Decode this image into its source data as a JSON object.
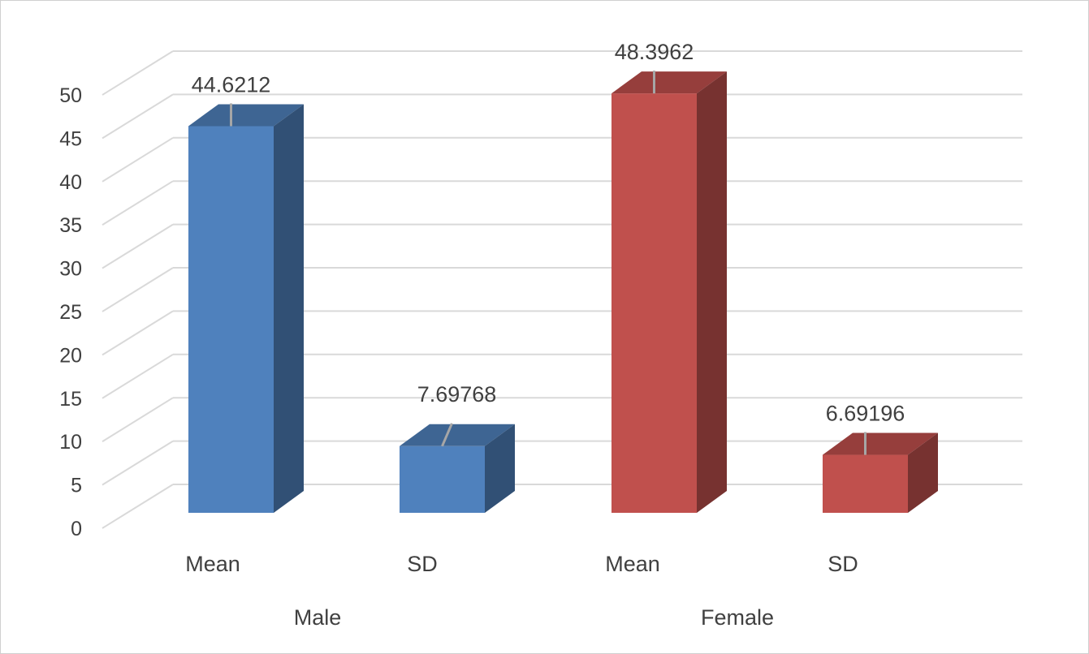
{
  "chart_data": {
    "type": "bar",
    "style": "3d-column",
    "title": "",
    "xlabel": "",
    "ylabel": "",
    "ylim": [
      0,
      50
    ],
    "ytick_step": 5,
    "ytick_labels": [
      "0",
      "5",
      "10",
      "15",
      "20",
      "25",
      "30",
      "35",
      "40",
      "45",
      "50"
    ],
    "grid": true,
    "legend": "none",
    "groups": [
      {
        "name": "Male",
        "color": "#4f81bd",
        "bars": [
          {
            "category": "Mean",
            "value": 44.6212,
            "label": "44.6212"
          },
          {
            "category": "SD",
            "value": 7.69768,
            "label": "7.69768"
          }
        ]
      },
      {
        "name": "Female",
        "color": "#c0504d",
        "bars": [
          {
            "category": "Mean",
            "value": 48.3962,
            "label": "48.3962"
          },
          {
            "category": "SD",
            "value": 6.69196,
            "label": "6.69196"
          }
        ]
      }
    ]
  }
}
